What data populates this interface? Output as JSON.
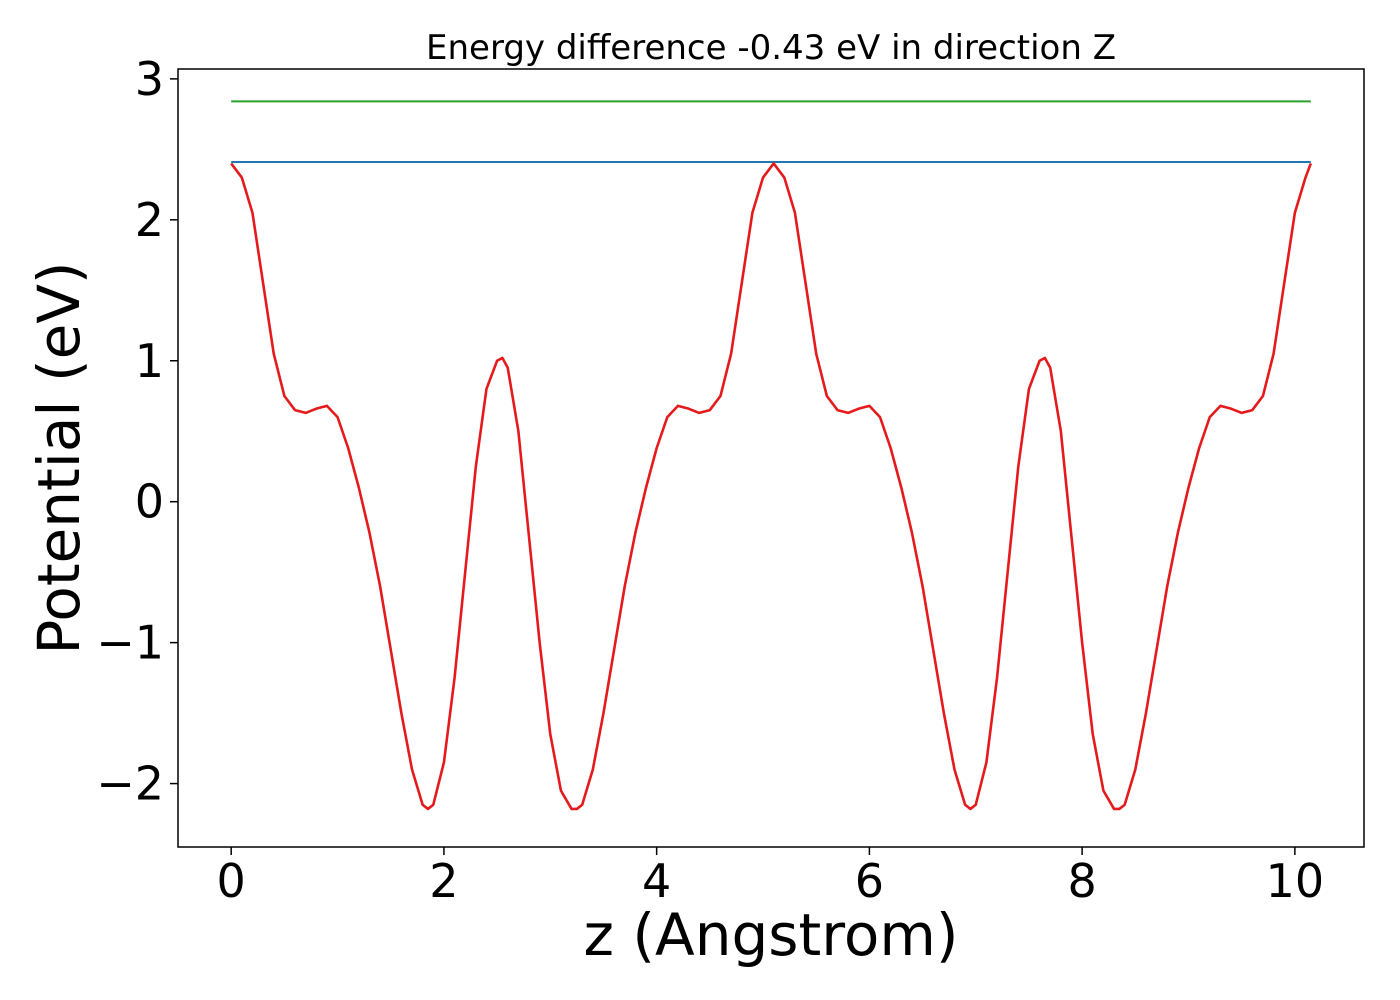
{
  "chart_data": {
    "type": "line",
    "title": "Energy difference -0.43 eV in direction Z",
    "xlabel": "z (Angstrom)",
    "ylabel": "Potential (eV)",
    "xlim": [
      -0.5,
      10.65
    ],
    "ylim": [
      -2.45,
      3.07
    ],
    "xticks": [
      0,
      2,
      4,
      6,
      8,
      10
    ],
    "xtick_labels": [
      "0",
      "2",
      "4",
      "6",
      "8",
      "10"
    ],
    "yticks": [
      -2,
      -1,
      0,
      1,
      2,
      3
    ],
    "ytick_labels": [
      "−2",
      "−1",
      "0",
      "1",
      "2",
      "3"
    ],
    "grid": false,
    "series": [
      {
        "color": "#e41a1c",
        "x": [
          0.0,
          0.1,
          0.2,
          0.3,
          0.4,
          0.5,
          0.6,
          0.7,
          0.8,
          0.9,
          1.0,
          1.1,
          1.2,
          1.3,
          1.4,
          1.5,
          1.6,
          1.7,
          1.8,
          1.85,
          1.9,
          2.0,
          2.1,
          2.2,
          2.3,
          2.4,
          2.5,
          2.55,
          2.6,
          2.7,
          2.8,
          2.9,
          3.0,
          3.1,
          3.2,
          3.25,
          3.3,
          3.4,
          3.5,
          3.6,
          3.7,
          3.8,
          3.9,
          4.0,
          4.1,
          4.2,
          4.3,
          4.4,
          4.5,
          4.6,
          4.7,
          4.8,
          4.9,
          5.0,
          5.1,
          5.2,
          5.3,
          5.4,
          5.5,
          5.6,
          5.7,
          5.8,
          5.9,
          6.0,
          6.1,
          6.2,
          6.3,
          6.4,
          6.5,
          6.6,
          6.7,
          6.8,
          6.9,
          6.95,
          7.0,
          7.1,
          7.2,
          7.3,
          7.4,
          7.5,
          7.6,
          7.65,
          7.7,
          7.8,
          7.9,
          8.0,
          8.1,
          8.2,
          8.3,
          8.35,
          8.4,
          8.5,
          8.6,
          8.7,
          8.8,
          8.9,
          9.0,
          9.1,
          9.2,
          9.3,
          9.4,
          9.5,
          9.6,
          9.7,
          9.8,
          9.9,
          10.0,
          10.1,
          10.15
        ],
        "y": [
          2.4,
          2.3,
          2.05,
          1.55,
          1.05,
          0.75,
          0.65,
          0.63,
          0.66,
          0.68,
          0.6,
          0.38,
          0.1,
          -0.22,
          -0.6,
          -1.05,
          -1.5,
          -1.9,
          -2.15,
          -2.18,
          -2.15,
          -1.85,
          -1.25,
          -0.5,
          0.25,
          0.8,
          1.0,
          1.02,
          0.95,
          0.5,
          -0.25,
          -1.0,
          -1.65,
          -2.05,
          -2.18,
          -2.18,
          -2.15,
          -1.9,
          -1.5,
          -1.05,
          -0.6,
          -0.22,
          0.1,
          0.38,
          0.6,
          0.68,
          0.66,
          0.63,
          0.65,
          0.75,
          1.05,
          1.55,
          2.05,
          2.3,
          2.4,
          2.3,
          2.05,
          1.55,
          1.05,
          0.75,
          0.65,
          0.63,
          0.66,
          0.68,
          0.6,
          0.38,
          0.1,
          -0.22,
          -0.6,
          -1.05,
          -1.5,
          -1.9,
          -2.15,
          -2.18,
          -2.15,
          -1.85,
          -1.25,
          -0.5,
          0.25,
          0.8,
          1.0,
          1.02,
          0.95,
          0.5,
          -0.25,
          -1.0,
          -1.65,
          -2.05,
          -2.18,
          -2.18,
          -2.15,
          -1.9,
          -1.5,
          -1.05,
          -0.6,
          -0.22,
          0.1,
          0.38,
          0.6,
          0.68,
          0.66,
          0.63,
          0.65,
          0.75,
          1.05,
          1.55,
          2.05,
          2.3,
          2.4
        ]
      },
      {
        "color": "#1f77b4",
        "x": [
          0.0,
          10.15
        ],
        "y": [
          2.41,
          2.41
        ]
      },
      {
        "color": "#2ca02c",
        "x": [
          0.0,
          10.15
        ],
        "y": [
          2.84,
          2.84
        ]
      }
    ]
  }
}
